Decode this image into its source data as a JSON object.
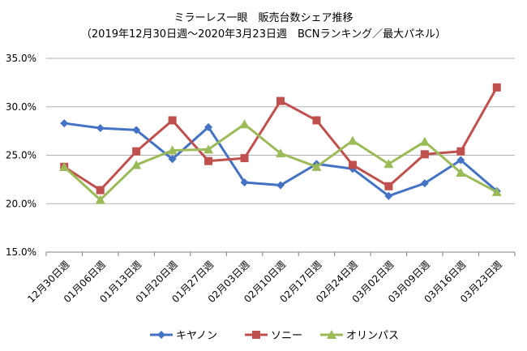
{
  "chart_data": {
    "type": "line",
    "title": "ミラーレス一眼　販売台数シェア推移",
    "subtitle": "（2019年12月30日週～2020年3月23日週　BCNランキング／最大パネル）",
    "xlabel": "",
    "ylabel": "",
    "categories": [
      "12月30日週",
      "01月06日週",
      "01月13日週",
      "01月20日週",
      "01月27日週",
      "02月03日週",
      "02月10日週",
      "02月17日週",
      "02月24日週",
      "03月02日週",
      "03月09日週",
      "03月16日週",
      "03月23日週"
    ],
    "ylim": [
      15,
      35
    ],
    "yticks": [
      "15.0%",
      "20.0%",
      "25.0%",
      "30.0%",
      "35.0%"
    ],
    "grid": true,
    "legend_position": "bottom",
    "series": [
      {
        "name": "キヤノン",
        "color": "#4472C4",
        "marker": "diamond",
        "values": [
          28.3,
          27.8,
          27.6,
          24.6,
          27.9,
          22.2,
          21.9,
          24.1,
          23.6,
          20.8,
          22.1,
          24.5,
          21.3
        ]
      },
      {
        "name": "ソニー",
        "color": "#C0504D",
        "marker": "square",
        "values": [
          23.8,
          21.4,
          25.4,
          28.6,
          24.4,
          24.7,
          30.6,
          28.6,
          24.0,
          21.8,
          25.1,
          25.4,
          32.0
        ]
      },
      {
        "name": "オリンパス",
        "color": "#9BBB59",
        "marker": "triangle",
        "values": [
          23.8,
          20.4,
          24.0,
          25.5,
          25.6,
          28.2,
          25.2,
          23.8,
          26.5,
          24.1,
          26.4,
          23.2,
          21.2
        ]
      }
    ]
  }
}
